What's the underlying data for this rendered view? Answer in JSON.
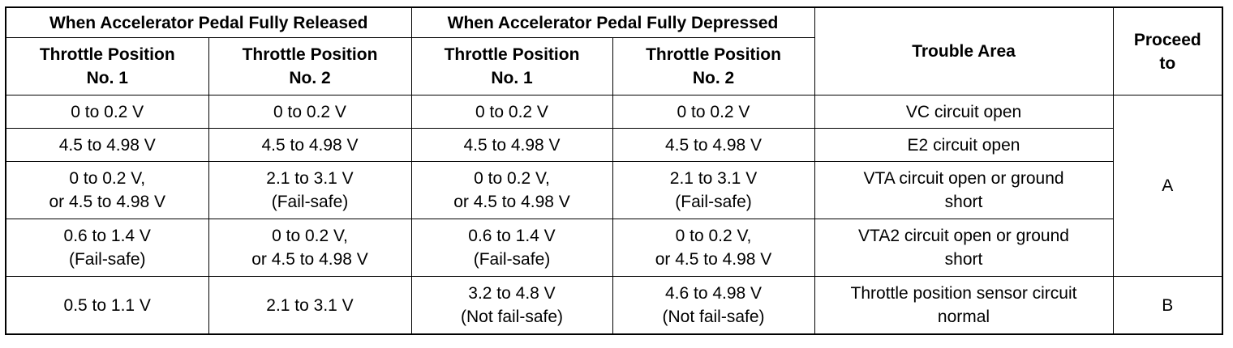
{
  "table": {
    "group_headers": [
      "When Accelerator Pedal Fully Released",
      "When Accelerator Pedal Fully Depressed"
    ],
    "sub_headers": [
      [
        "Throttle Position",
        "No. 1"
      ],
      [
        "Throttle Position",
        "No. 2"
      ],
      [
        "Throttle Position",
        "No. 1"
      ],
      [
        "Throttle Position",
        "No. 2"
      ]
    ],
    "trouble_area_header": "Trouble Area",
    "proceed_header": [
      "Proceed",
      "to"
    ],
    "rows": [
      {
        "cells": [
          [
            "0 to 0.2 V"
          ],
          [
            "0 to 0.2 V"
          ],
          [
            "0 to 0.2 V"
          ],
          [
            "0 to 0.2 V"
          ]
        ],
        "trouble": [
          "VC circuit open"
        ]
      },
      {
        "cells": [
          [
            "4.5 to 4.98 V"
          ],
          [
            "4.5 to 4.98 V"
          ],
          [
            "4.5 to 4.98 V"
          ],
          [
            "4.5 to 4.98 V"
          ]
        ],
        "trouble": [
          "E2 circuit open"
        ]
      },
      {
        "cells": [
          [
            "0 to 0.2 V,",
            "or 4.5 to 4.98 V"
          ],
          [
            "2.1 to 3.1 V",
            "(Fail-safe)"
          ],
          [
            "0 to 0.2 V,",
            "or 4.5 to 4.98 V"
          ],
          [
            "2.1 to 3.1 V",
            "(Fail-safe)"
          ]
        ],
        "trouble": [
          "VTA circuit open or ground",
          "short"
        ]
      },
      {
        "cells": [
          [
            "0.6 to 1.4 V",
            "(Fail-safe)"
          ],
          [
            "0 to 0.2 V,",
            "or 4.5 to 4.98 V"
          ],
          [
            "0.6 to 1.4 V",
            "(Fail-safe)"
          ],
          [
            "0 to 0.2 V,",
            "or 4.5 to 4.98 V"
          ]
        ],
        "trouble": [
          "VTA2 circuit open or ground",
          "short"
        ]
      },
      {
        "cells": [
          [
            "0.5 to 1.1 V"
          ],
          [
            "2.1 to 3.1 V"
          ],
          [
            "3.2 to 4.8 V",
            "(Not fail-safe)"
          ],
          [
            "4.6 to 4.98 V",
            "(Not fail-safe)"
          ]
        ],
        "trouble": [
          "Throttle position sensor circuit",
          "normal"
        ]
      }
    ],
    "proceed_values": [
      "A",
      "B"
    ]
  }
}
